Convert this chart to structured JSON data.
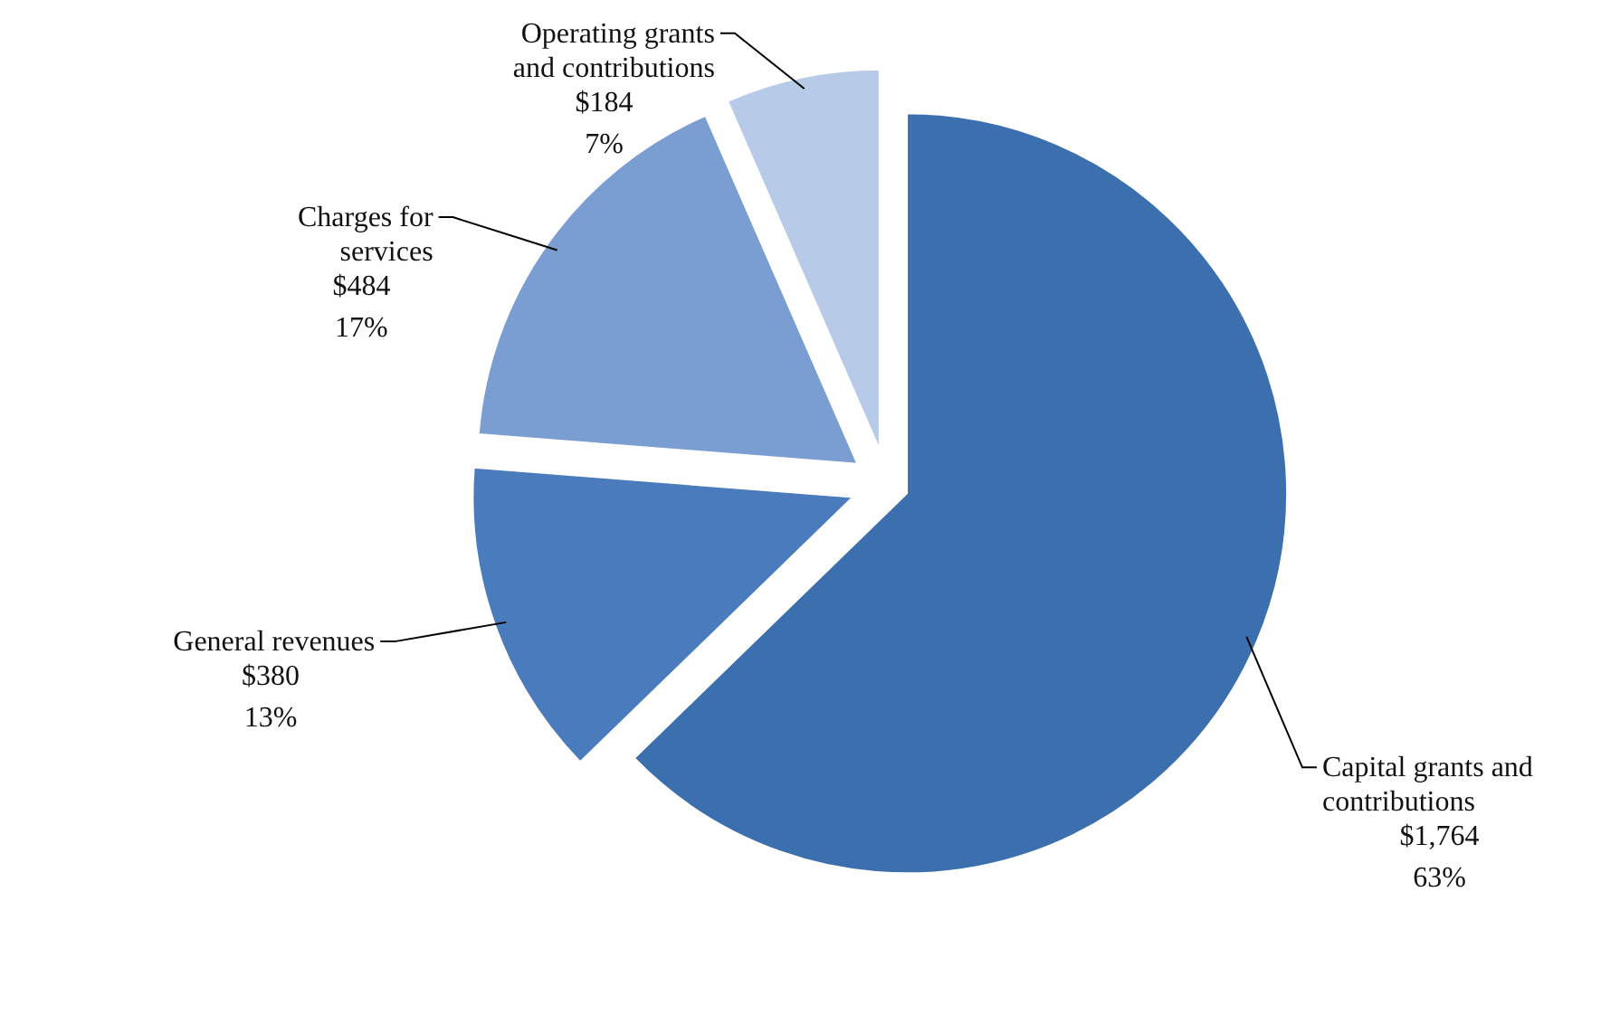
{
  "chart_data": {
    "type": "pie",
    "categories": [
      "Capital grants and contributions",
      "General revenues",
      "Charges for services",
      "Operating grants and contributions"
    ],
    "values": [
      1764,
      380,
      484,
      184
    ],
    "colors": [
      "#3b6fae",
      "#4a7cbd",
      "#7b9ed2",
      "#b7cae7"
    ],
    "value_labels": [
      "$1,764\n63%",
      "$380\n13%",
      "$484\n17%",
      "$184\n7%"
    ]
  }
}
